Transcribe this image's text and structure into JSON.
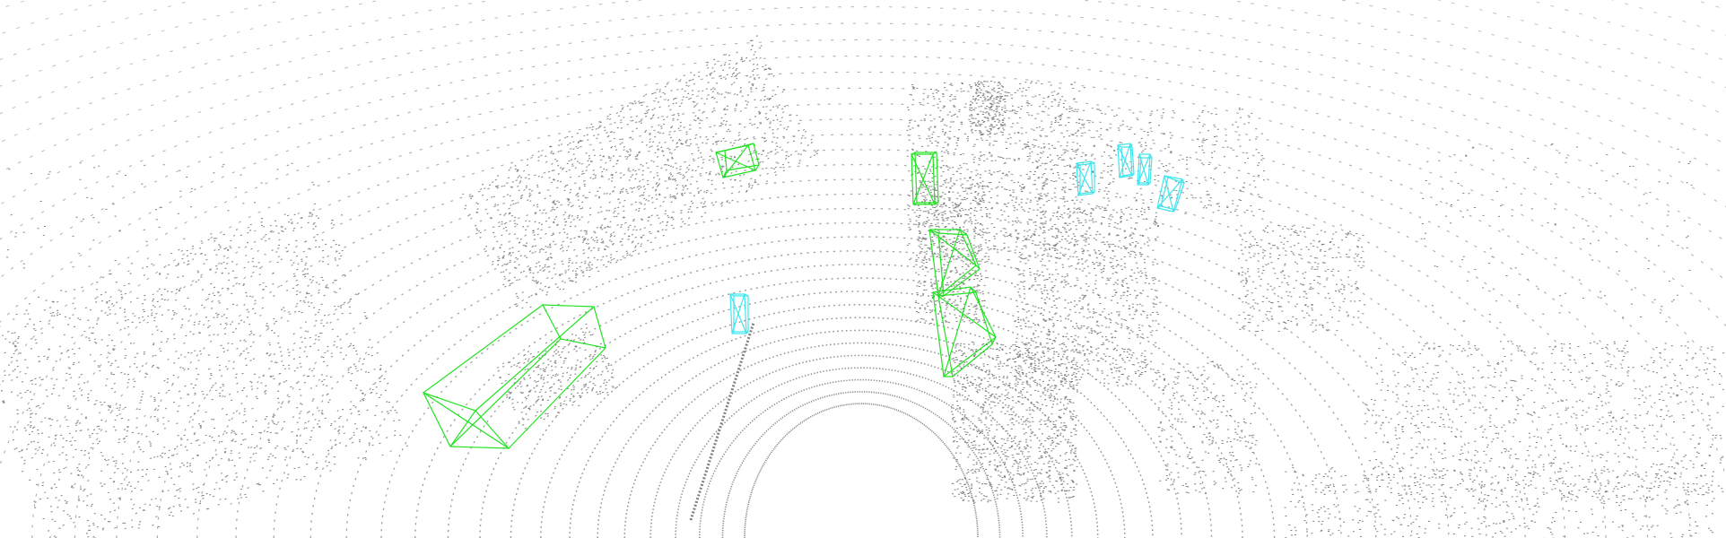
{
  "scene": {
    "background_color": "#ffffff",
    "point_color": "#808080",
    "box_classes": [
      {
        "class": "vehicle",
        "color": "#22e322"
      },
      {
        "class": "pedestrian",
        "color": "#3fe6ee"
      }
    ],
    "counts": {
      "vehicle_boxes": 5,
      "pedestrian_boxes": 5
    }
  }
}
